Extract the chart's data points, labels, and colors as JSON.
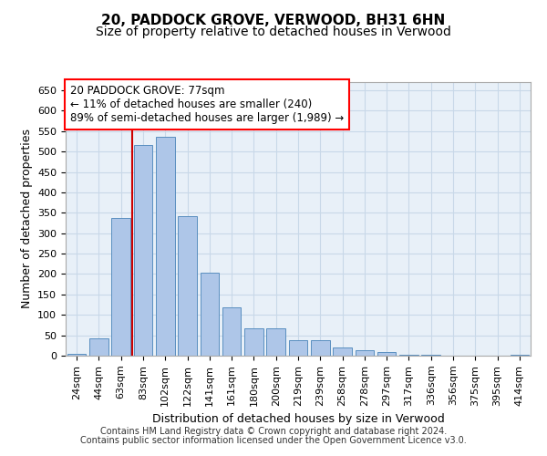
{
  "title_line1": "20, PADDOCK GROVE, VERWOOD, BH31 6HN",
  "title_line2": "Size of property relative to detached houses in Verwood",
  "xlabel": "Distribution of detached houses by size in Verwood",
  "ylabel": "Number of detached properties",
  "categories": [
    "24sqm",
    "44sqm",
    "63sqm",
    "83sqm",
    "102sqm",
    "122sqm",
    "141sqm",
    "161sqm",
    "180sqm",
    "200sqm",
    "219sqm",
    "239sqm",
    "258sqm",
    "278sqm",
    "297sqm",
    "317sqm",
    "336sqm",
    "356sqm",
    "375sqm",
    "395sqm",
    "414sqm"
  ],
  "values": [
    5,
    43,
    338,
    517,
    537,
    342,
    204,
    119,
    68,
    67,
    38,
    37,
    19,
    13,
    10,
    3,
    3,
    1,
    0,
    0,
    2
  ],
  "bar_color": "#aec6e8",
  "bar_edge_color": "#5a8fc0",
  "bar_width": 0.85,
  "vline_x_index": 2.5,
  "vline_color": "#cc0000",
  "annotation_box_text": "20 PADDOCK GROVE: 77sqm\n← 11% of detached houses are smaller (240)\n89% of semi-detached houses are larger (1,989) →",
  "ylim": [
    0,
    670
  ],
  "yticks": [
    0,
    50,
    100,
    150,
    200,
    250,
    300,
    350,
    400,
    450,
    500,
    550,
    600,
    650
  ],
  "grid_color": "#c8d8e8",
  "background_color": "#e8f0f8",
  "footer_line1": "Contains HM Land Registry data © Crown copyright and database right 2024.",
  "footer_line2": "Contains public sector information licensed under the Open Government Licence v3.0.",
  "title_fontsize": 11,
  "subtitle_fontsize": 10,
  "axis_label_fontsize": 9,
  "tick_fontsize": 8,
  "annotation_fontsize": 8.5,
  "footer_fontsize": 7
}
